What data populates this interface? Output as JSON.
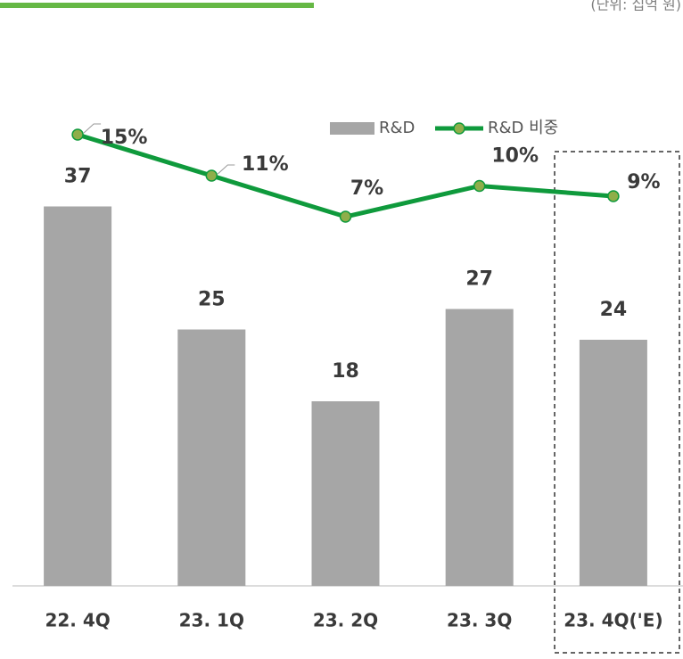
{
  "unit_note": "(단위: 십억 원)",
  "chart_data": {
    "type": "bar-line",
    "categories": [
      "22. 4Q",
      "23. 1Q",
      "23. 2Q",
      "23. 3Q",
      "23. 4Q('E)"
    ],
    "series": [
      {
        "name": "R&D",
        "type": "bar",
        "color": "#a6a6a6",
        "values": [
          37,
          25,
          18,
          27,
          24
        ]
      },
      {
        "name": "R&D 비중",
        "type": "line",
        "axis": "y2",
        "color": "#0f9a3c",
        "marker_color": "#8fae4a",
        "values": [
          15,
          11,
          7,
          10,
          9
        ],
        "value_labels": [
          "15%",
          "11%",
          "7%",
          "10%",
          "9%"
        ]
      }
    ],
    "ylim": [
      0,
      50
    ],
    "y2lim": [
      -29,
      21
    ],
    "legend": "top-right",
    "grid": false
  }
}
